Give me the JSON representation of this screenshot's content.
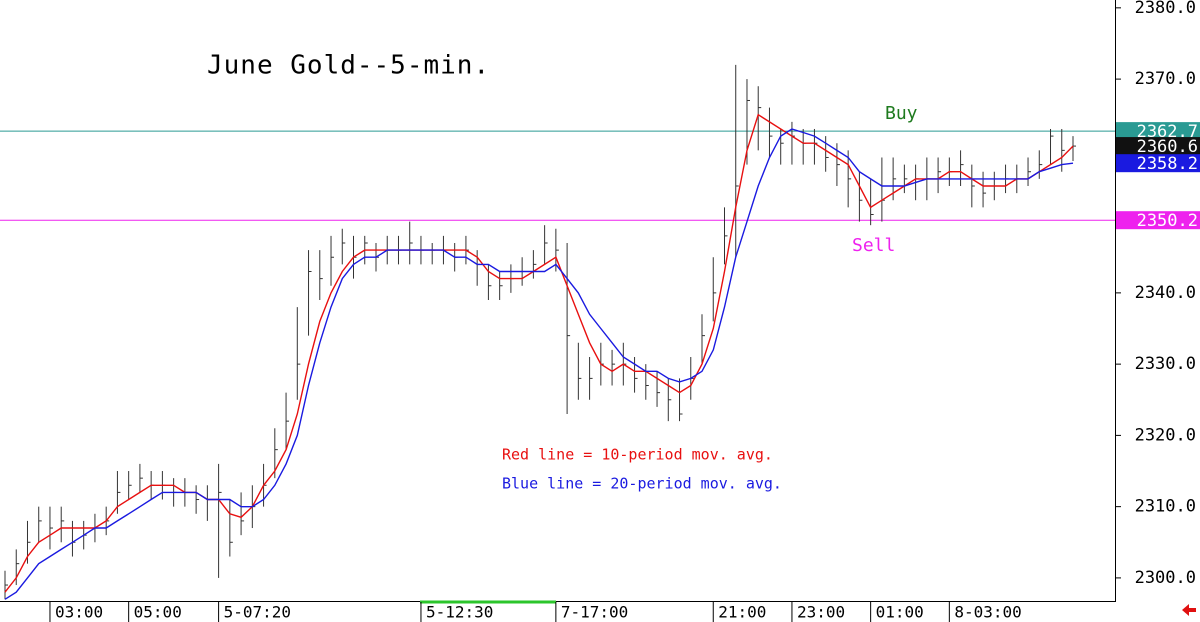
{
  "chart_data": {
    "type": "ohlc",
    "title": "June Gold--5-min.",
    "annotations": {
      "ma10": "Red line = 10-period mov. avg.",
      "ma20": "Blue line = 20-period mov. avg.",
      "buy": "Buy",
      "sell": "Sell"
    },
    "categories": [
      null,
      null,
      null,
      null,
      "03:00",
      null,
      null,
      null,
      null,
      null,
      null,
      "05:00",
      null,
      null,
      null,
      null,
      null,
      null,
      null,
      "5-07:20",
      null,
      null,
      null,
      null,
      null,
      null,
      null,
      null,
      null,
      null,
      null,
      null,
      null,
      null,
      null,
      null,
      null,
      "5-12:30",
      null,
      null,
      null,
      null,
      null,
      null,
      null,
      null,
      null,
      null,
      null,
      "7-17:00",
      null,
      null,
      null,
      null,
      null,
      null,
      null,
      null,
      null,
      null,
      null,
      null,
      null,
      "21:00",
      null,
      null,
      null,
      null,
      null,
      null,
      "23:00",
      null,
      null,
      null,
      null,
      null,
      null,
      "01:00",
      null,
      null,
      null,
      null,
      null,
      null,
      "8-03:00",
      null,
      null,
      null,
      null,
      null,
      null,
      null,
      null,
      null,
      null,
      null
    ],
    "bar_color": "#333333",
    "high": [
      2301,
      2304,
      2308,
      2310,
      2310,
      2310,
      2308,
      2308,
      2309,
      2310,
      2315,
      2315,
      2316,
      2315,
      2315,
      2314,
      2314,
      2313,
      2313,
      2316,
      2311,
      2312,
      2313,
      2316,
      2321,
      2326,
      2338,
      2346,
      2346,
      2348,
      2349,
      2348,
      2348,
      2347,
      2348,
      2348,
      2350,
      2348,
      2347,
      2348,
      2347,
      2348,
      2346,
      2344,
      2343,
      2344,
      2345,
      2346,
      2349.5,
      2349,
      2347,
      2333,
      2331,
      2333,
      2332,
      2333,
      2331,
      2330,
      2329,
      2328,
      2328,
      2331,
      2337,
      2345,
      2352,
      2372,
      2370,
      2369,
      2366,
      2363,
      2364,
      2363,
      2363,
      2362,
      2361,
      2360,
      2357,
      2356,
      2359,
      2359,
      2358,
      2358,
      2359,
      2359,
      2359,
      2360,
      2358,
      2357,
      2357,
      2358,
      2358,
      2359,
      2360,
      2363,
      2363,
      2362
    ],
    "low": [
      2297,
      2299,
      2302,
      2305,
      2304,
      2305,
      2303,
      2304,
      2305,
      2306,
      2309,
      2311,
      2312,
      2311,
      2311,
      2310,
      2310,
      2309,
      2308,
      2300,
      2303,
      2306,
      2307,
      2310,
      2314,
      2318,
      2325,
      2334,
      2339,
      2341,
      2344,
      2342,
      2344,
      2343,
      2344,
      2344,
      2344,
      2344,
      2344,
      2344,
      2343,
      2344,
      2341,
      2339,
      2339,
      2340,
      2341,
      2342,
      2344,
      2343,
      2323,
      2325,
      2325,
      2327,
      2327,
      2327,
      2326,
      2325,
      2324,
      2322,
      2322,
      2325,
      2330,
      2336,
      2344,
      2345,
      2358,
      2360,
      2359,
      2358,
      2358,
      2358,
      2358,
      2357,
      2355,
      2352,
      2350,
      2349.5,
      2350,
      2353,
      2354,
      2353,
      2353,
      2354,
      2355,
      2355,
      2352,
      2352,
      2353,
      2354,
      2354,
      2355,
      2356,
      2358,
      2357,
      2358.5
    ],
    "close": [
      2299,
      2302,
      2305,
      2308,
      2307,
      2308,
      2305,
      2306,
      2307,
      2308,
      2312,
      2313,
      2314,
      2313,
      2313,
      2312,
      2312,
      2311,
      2311,
      2312,
      2305,
      2308,
      2310,
      2313,
      2318,
      2322,
      2330,
      2343,
      2342,
      2345,
      2347,
      2345,
      2347,
      2345,
      2346,
      2346,
      2347,
      2346,
      2346,
      2346,
      2345,
      2346,
      2344,
      2341,
      2341,
      2342,
      2343,
      2344,
      2347,
      2346,
      2334,
      2328,
      2328,
      2330,
      2330,
      2330,
      2328,
      2327,
      2326,
      2325,
      2323,
      2328,
      2334,
      2340,
      2348,
      2355,
      2367,
      2366,
      2362,
      2361,
      2362,
      2361,
      2361,
      2359,
      2358,
      2356,
      2353,
      2351,
      2353,
      2356,
      2356,
      2356,
      2356,
      2357,
      2357,
      2358,
      2355,
      2354,
      2355,
      2356,
      2356,
      2357,
      2358,
      2362,
      2360,
      2360.6
    ],
    "moving_averages": [
      {
        "color": "#e81010",
        "values": [
          2298,
          2300,
          2303,
          2305,
          2306,
          2307,
          2307,
          2307,
          2307,
          2308,
          2310,
          2311,
          2312,
          2313,
          2313,
          2313,
          2312,
          2312,
          2311,
          2311,
          2309,
          2308.5,
          2310,
          2313,
          2315,
          2318,
          2323,
          2330,
          2336,
          2340,
          2343,
          2345,
          2346,
          2346,
          2346,
          2346,
          2346,
          2346,
          2346,
          2346,
          2346,
          2346,
          2345,
          2343,
          2342,
          2342,
          2342,
          2343,
          2344,
          2345,
          2341,
          2337,
          2333,
          2330,
          2329,
          2330,
          2329,
          2329,
          2328,
          2327,
          2326,
          2327,
          2330,
          2335,
          2343,
          2352,
          2360,
          2365,
          2364,
          2363,
          2362,
          2361,
          2361,
          2360,
          2359,
          2358,
          2355,
          2352,
          2353,
          2354,
          2355,
          2356,
          2356,
          2356,
          2357,
          2357,
          2356,
          2355,
          2355,
          2355,
          2356,
          2356,
          2357,
          2358,
          2359,
          2360.6
        ]
      },
      {
        "color": "#1a1ae0",
        "values": [
          2297,
          2298,
          2300,
          2302,
          2303,
          2304,
          2305,
          2306,
          2307,
          2307,
          2308,
          2309,
          2310,
          2311,
          2312,
          2312,
          2312,
          2312,
          2311,
          2311,
          2311,
          2310,
          2310,
          2311,
          2313,
          2316,
          2320,
          2327,
          2333,
          2338,
          2342,
          2344,
          2345,
          2345,
          2346,
          2346,
          2346,
          2346,
          2346,
          2346,
          2345,
          2345,
          2344,
          2344,
          2343,
          2343,
          2343,
          2343,
          2343,
          2344,
          2342,
          2340,
          2337,
          2335,
          2333,
          2331,
          2330,
          2329,
          2329,
          2328,
          2327.5,
          2328,
          2329,
          2332,
          2338,
          2345,
          2350,
          2355,
          2359,
          2362,
          2363,
          2362.5,
          2362,
          2361,
          2360,
          2359,
          2357,
          2356,
          2355,
          2355,
          2355,
          2355.5,
          2356,
          2356,
          2356,
          2356,
          2356,
          2356,
          2356,
          2356,
          2356,
          2356,
          2357,
          2357.5,
          2358,
          2358.2
        ]
      }
    ],
    "price_tags": [
      {
        "value": 2362.7,
        "color": "#2a9a93",
        "line": true
      },
      {
        "value": 2360.6,
        "color": "#111111",
        "line": false
      },
      {
        "value": 2358.2,
        "color": "#1a1ae0",
        "line": false
      },
      {
        "value": 2350.2,
        "color": "#ee22ee",
        "line": true
      }
    ],
    "ylim": [
      2296.9,
      2381.1
    ],
    "yticks": [
      {
        "value": 2300,
        "label": "2300.0"
      },
      {
        "value": 2310,
        "label": "2310.0"
      },
      {
        "value": 2320,
        "label": "2320.0"
      },
      {
        "value": 2330,
        "label": "2330.0"
      },
      {
        "value": 2340,
        "label": "2340.0"
      },
      {
        "value": 2350,
        "label": "2350.0"
      },
      {
        "value": 2360,
        "label": "2360.0"
      },
      {
        "value": 2370,
        "label": "2370.0"
      },
      {
        "value": 2380,
        "label": "2380.0"
      }
    ]
  }
}
